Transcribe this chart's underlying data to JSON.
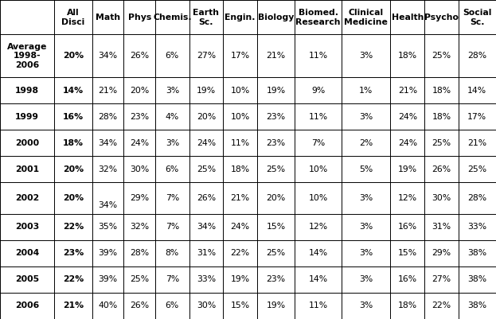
{
  "col_headers": [
    "",
    "All\nDisci",
    "Math",
    "Phys",
    "Chemis.",
    "Earth\nSc.",
    "Engin.",
    "Biology",
    "Biomed.\nResearch",
    "Clinical\nMedicine",
    "Health",
    "Psycho",
    "Social\nSc."
  ],
  "rows": [
    {
      "label": "Average\n1998-\n2006",
      "values": [
        "20%",
        "34%",
        "26%",
        "6%",
        "27%",
        "17%",
        "21%",
        "11%",
        "3%",
        "18%",
        "25%",
        "28%"
      ],
      "bold_label": true,
      "bold_first": true,
      "math_pos": "center"
    },
    {
      "label": "1998",
      "values": [
        "14%",
        "21%",
        "20%",
        "3%",
        "19%",
        "10%",
        "19%",
        "9%",
        "1%",
        "21%",
        "18%",
        "14%"
      ],
      "bold_label": true,
      "bold_first": true,
      "math_pos": "center"
    },
    {
      "label": "1999",
      "values": [
        "16%",
        "28%",
        "23%",
        "4%",
        "20%",
        "10%",
        "23%",
        "11%",
        "3%",
        "24%",
        "18%",
        "17%"
      ],
      "bold_label": true,
      "bold_first": true,
      "math_pos": "center"
    },
    {
      "label": "2000",
      "values": [
        "18%",
        "34%",
        "24%",
        "3%",
        "24%",
        "11%",
        "23%",
        "7%",
        "2%",
        "24%",
        "25%",
        "21%"
      ],
      "bold_label": true,
      "bold_first": true,
      "math_pos": "center"
    },
    {
      "label": "2001",
      "values": [
        "20%",
        "32%",
        "30%",
        "6%",
        "25%",
        "18%",
        "25%",
        "10%",
        "5%",
        "19%",
        "26%",
        "25%"
      ],
      "bold_label": true,
      "bold_first": true,
      "math_pos": "center"
    },
    {
      "label": "2002",
      "values": [
        "20%",
        "34%",
        "29%",
        "7%",
        "26%",
        "21%",
        "20%",
        "10%",
        "3%",
        "12%",
        "30%",
        "28%"
      ],
      "bold_label": true,
      "bold_first": true,
      "math_pos": "bottom"
    },
    {
      "label": "2003",
      "values": [
        "22%",
        "35%",
        "32%",
        "7%",
        "34%",
        "24%",
        "15%",
        "12%",
        "3%",
        "16%",
        "31%",
        "33%"
      ],
      "bold_label": true,
      "bold_first": true,
      "math_pos": "center"
    },
    {
      "label": "2004",
      "values": [
        "23%",
        "39%",
        "28%",
        "8%",
        "31%",
        "22%",
        "25%",
        "14%",
        "3%",
        "15%",
        "29%",
        "38%"
      ],
      "bold_label": true,
      "bold_first": true,
      "math_pos": "center"
    },
    {
      "label": "2005",
      "values": [
        "22%",
        "39%",
        "25%",
        "7%",
        "33%",
        "19%",
        "23%",
        "14%",
        "3%",
        "16%",
        "27%",
        "38%"
      ],
      "bold_label": true,
      "bold_first": true,
      "math_pos": "center"
    },
    {
      "label": "2006",
      "values": [
        "21%",
        "40%",
        "26%",
        "6%",
        "30%",
        "15%",
        "19%",
        "11%",
        "3%",
        "18%",
        "22%",
        "38%"
      ],
      "bold_label": true,
      "bold_first": true,
      "math_pos": "center"
    }
  ],
  "col_widths_raw": [
    7.2,
    5.0,
    4.2,
    4.2,
    4.5,
    4.5,
    4.5,
    5.0,
    6.2,
    6.5,
    4.5,
    4.5,
    5.0
  ],
  "row_heights_raw": [
    10.5,
    13,
    8,
    8,
    8,
    8,
    9.5,
    8,
    8,
    8,
    8
  ],
  "background_color": "#ffffff",
  "line_color": "#000000",
  "text_color": "#000000",
  "header_fontsize": 7.8,
  "cell_fontsize": 7.8
}
